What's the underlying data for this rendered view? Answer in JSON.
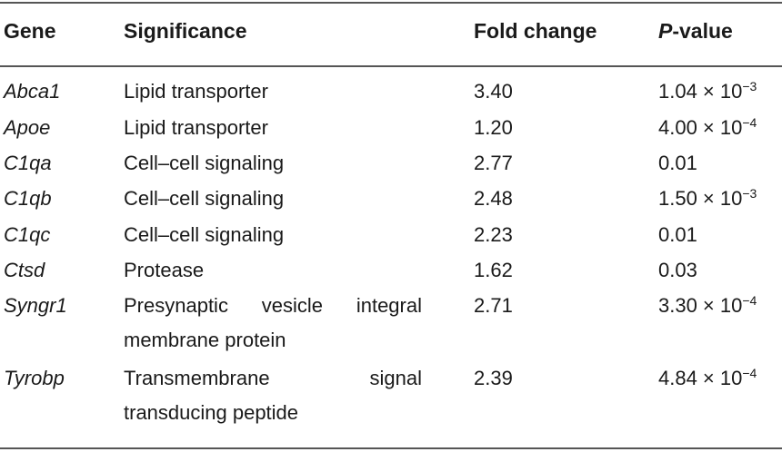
{
  "table": {
    "headers": {
      "gene": "Gene",
      "significance": "Significance",
      "fold_change": "Fold change",
      "p_italic": "P",
      "p_rest": "-value"
    },
    "rows": [
      {
        "gene": "Abca1",
        "significance": "Lipid transporter",
        "fold_change": "3.40",
        "p_mantissa": "1.04 × 10",
        "p_exp": "−3"
      },
      {
        "gene": "Apoe",
        "significance": "Lipid transporter",
        "fold_change": "1.20",
        "p_mantissa": "4.00 × 10",
        "p_exp": "−4"
      },
      {
        "gene": "C1qa",
        "significance": "Cell–cell signaling",
        "fold_change": "2.77",
        "p_mantissa": "0.01",
        "p_exp": ""
      },
      {
        "gene": "C1qb",
        "significance": "Cell–cell signaling",
        "fold_change": "2.48",
        "p_mantissa": "1.50 × 10",
        "p_exp": "−3"
      },
      {
        "gene": "C1qc",
        "significance": "Cell–cell signaling",
        "fold_change": "2.23",
        "p_mantissa": "0.01",
        "p_exp": ""
      },
      {
        "gene": "Ctsd",
        "significance": "Protease",
        "fold_change": "1.62",
        "p_mantissa": "0.03",
        "p_exp": ""
      },
      {
        "gene": "Syngr1",
        "significance": "Presynaptic vesicle integral membrane protein",
        "fold_change": "2.71",
        "p_mantissa": "3.30 × 10",
        "p_exp": "−4"
      },
      {
        "gene": "Tyrobp",
        "significance": "Transmembrane signal transducing peptide",
        "fold_change": "2.39",
        "p_mantissa": "4.84 × 10",
        "p_exp": "−4"
      }
    ]
  }
}
